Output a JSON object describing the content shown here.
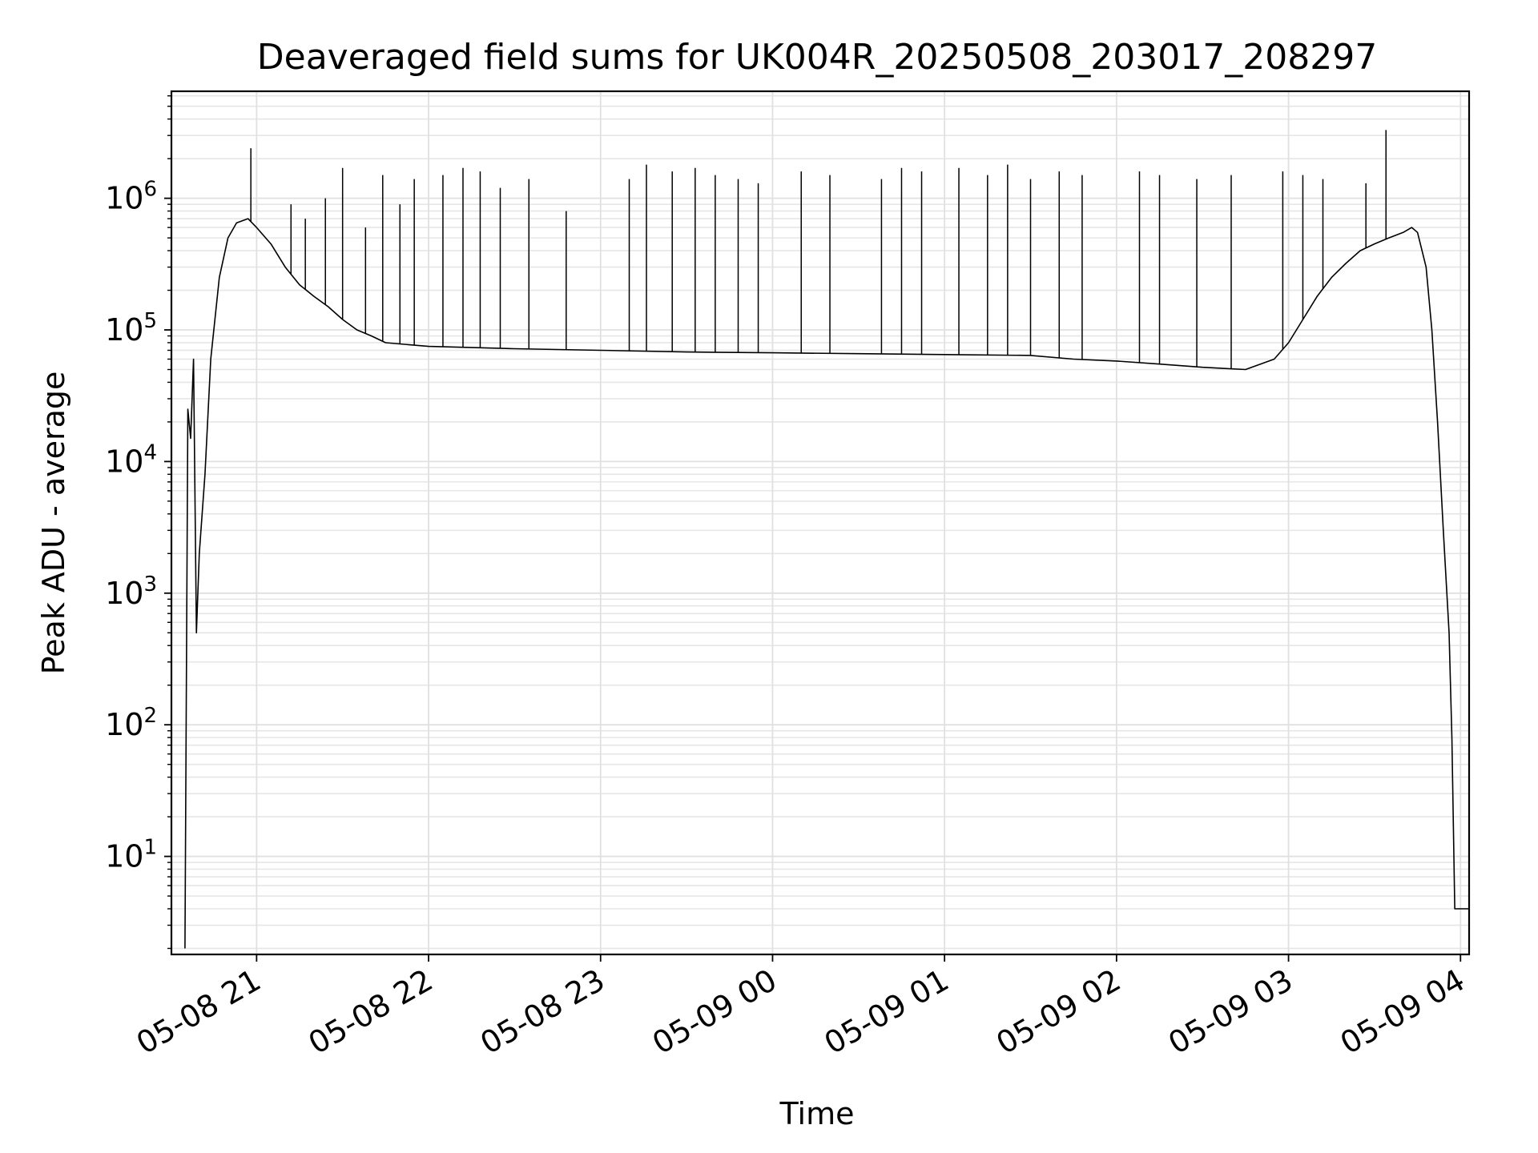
{
  "chart_data": {
    "type": "line",
    "title": "Deaveraged field sums for UK004R_20250508_203017_208297",
    "xlabel": "Time",
    "ylabel": "Peak ADU - average",
    "x_axis_type": "time",
    "xlim": [
      "2025-05-08 20:30:17",
      "2025-05-09 04:03:00"
    ],
    "x_ticks": [
      "05-08 21",
      "05-08 22",
      "05-08 23",
      "05-09 00",
      "05-09 01",
      "05-09 02",
      "05-09 03",
      "05-09 04"
    ],
    "x_tick_times": [
      "2025-05-08 21:00",
      "2025-05-08 22:00",
      "2025-05-08 23:00",
      "2025-05-09 00:00",
      "2025-05-09 01:00",
      "2025-05-09 02:00",
      "2025-05-09 03:00",
      "2025-05-09 04:00"
    ],
    "y_scale": "log",
    "ylim": [
      1.8,
      6500000
    ],
    "y_ticks": [
      {
        "base": "10",
        "exp": "1",
        "value": 10
      },
      {
        "base": "10",
        "exp": "2",
        "value": 100
      },
      {
        "base": "10",
        "exp": "3",
        "value": 1000
      },
      {
        "base": "10",
        "exp": "4",
        "value": 10000
      },
      {
        "base": "10",
        "exp": "5",
        "value": 100000
      },
      {
        "base": "10",
        "exp": "6",
        "value": 1000000
      }
    ],
    "grid": true,
    "series": [
      {
        "color": "#000000",
        "points": [
          [
            "2025-05-08 20:35",
            2
          ],
          [
            "2025-05-08 20:36",
            25000
          ],
          [
            "2025-05-08 20:37",
            15000
          ],
          [
            "2025-05-08 20:38",
            60000
          ],
          [
            "2025-05-08 20:39",
            500
          ],
          [
            "2025-05-08 20:40",
            2000
          ],
          [
            "2025-05-08 20:42",
            8000
          ],
          [
            "2025-05-08 20:44",
            60000
          ],
          [
            "2025-05-08 20:47",
            250000
          ],
          [
            "2025-05-08 20:50",
            500000
          ],
          [
            "2025-05-08 20:53",
            650000
          ],
          [
            "2025-05-08 20:57",
            700000
          ],
          [
            "2025-05-08 21:00",
            600000
          ],
          [
            "2025-05-08 21:05",
            450000
          ],
          [
            "2025-05-08 21:10",
            300000
          ],
          [
            "2025-05-08 21:15",
            220000
          ],
          [
            "2025-05-08 21:20",
            180000
          ],
          [
            "2025-05-08 21:25",
            150000
          ],
          [
            "2025-05-08 21:30",
            120000
          ],
          [
            "2025-05-08 21:35",
            100000
          ],
          [
            "2025-05-08 21:40",
            90000
          ],
          [
            "2025-05-08 21:45",
            80000
          ],
          [
            "2025-05-08 22:00",
            75000
          ],
          [
            "2025-05-08 22:30",
            72000
          ],
          [
            "2025-05-08 23:00",
            70000
          ],
          [
            "2025-05-08 23:30",
            68000
          ],
          [
            "2025-05-09 00:00",
            67000
          ],
          [
            "2025-05-09 00:30",
            66000
          ],
          [
            "2025-05-09 01:00",
            65000
          ],
          [
            "2025-05-09 01:30",
            64000
          ],
          [
            "2025-05-09 01:45",
            60000
          ],
          [
            "2025-05-09 02:00",
            58000
          ],
          [
            "2025-05-09 02:15",
            55000
          ],
          [
            "2025-05-09 02:30",
            52000
          ],
          [
            "2025-05-09 02:45",
            50000
          ],
          [
            "2025-05-09 02:55",
            60000
          ],
          [
            "2025-05-09 03:00",
            80000
          ],
          [
            "2025-05-09 03:05",
            120000
          ],
          [
            "2025-05-09 03:10",
            180000
          ],
          [
            "2025-05-09 03:15",
            250000
          ],
          [
            "2025-05-09 03:20",
            320000
          ],
          [
            "2025-05-09 03:25",
            400000
          ],
          [
            "2025-05-09 03:30",
            450000
          ],
          [
            "2025-05-09 03:35",
            500000
          ],
          [
            "2025-05-09 03:40",
            550000
          ],
          [
            "2025-05-09 03:43",
            600000
          ],
          [
            "2025-05-09 03:45",
            550000
          ],
          [
            "2025-05-09 03:48",
            300000
          ],
          [
            "2025-05-09 03:50",
            100000
          ],
          [
            "2025-05-09 03:52",
            20000
          ],
          [
            "2025-05-09 03:54",
            3000
          ],
          [
            "2025-05-09 03:56",
            500
          ],
          [
            "2025-05-09 03:57",
            80
          ],
          [
            "2025-05-09 03:58",
            4
          ],
          [
            "2025-05-09 04:03",
            4
          ]
        ]
      }
    ],
    "spikes": [
      [
        "2025-05-08 20:58",
        2400000
      ],
      [
        "2025-05-08 21:12",
        900000
      ],
      [
        "2025-05-08 21:17",
        700000
      ],
      [
        "2025-05-08 21:24",
        1000000
      ],
      [
        "2025-05-08 21:30",
        1700000
      ],
      [
        "2025-05-08 21:38",
        600000
      ],
      [
        "2025-05-08 21:44",
        1500000
      ],
      [
        "2025-05-08 21:50",
        900000
      ],
      [
        "2025-05-08 21:55",
        1400000
      ],
      [
        "2025-05-08 22:05",
        1500000
      ],
      [
        "2025-05-08 22:12",
        1700000
      ],
      [
        "2025-05-08 22:18",
        1600000
      ],
      [
        "2025-05-08 22:25",
        1200000
      ],
      [
        "2025-05-08 22:35",
        1400000
      ],
      [
        "2025-05-08 22:48",
        800000
      ],
      [
        "2025-05-08 23:10",
        1400000
      ],
      [
        "2025-05-08 23:16",
        1800000
      ],
      [
        "2025-05-08 23:25",
        1600000
      ],
      [
        "2025-05-08 23:33",
        1700000
      ],
      [
        "2025-05-08 23:40",
        1500000
      ],
      [
        "2025-05-08 23:48",
        1400000
      ],
      [
        "2025-05-08 23:55",
        1300000
      ],
      [
        "2025-05-09 00:10",
        1600000
      ],
      [
        "2025-05-09 00:20",
        1500000
      ],
      [
        "2025-05-09 00:38",
        1400000
      ],
      [
        "2025-05-09 00:45",
        1700000
      ],
      [
        "2025-05-09 00:52",
        1600000
      ],
      [
        "2025-05-09 01:05",
        1700000
      ],
      [
        "2025-05-09 01:15",
        1500000
      ],
      [
        "2025-05-09 01:22",
        1800000
      ],
      [
        "2025-05-09 01:30",
        1400000
      ],
      [
        "2025-05-09 01:40",
        1600000
      ],
      [
        "2025-05-09 01:48",
        1500000
      ],
      [
        "2025-05-09 02:08",
        1600000
      ],
      [
        "2025-05-09 02:15",
        1500000
      ],
      [
        "2025-05-09 02:28",
        1400000
      ],
      [
        "2025-05-09 02:40",
        1500000
      ],
      [
        "2025-05-09 02:58",
        1600000
      ],
      [
        "2025-05-09 03:05",
        1500000
      ],
      [
        "2025-05-09 03:12",
        1400000
      ],
      [
        "2025-05-09 03:27",
        1300000
      ],
      [
        "2025-05-09 03:34",
        3300000
      ]
    ]
  }
}
